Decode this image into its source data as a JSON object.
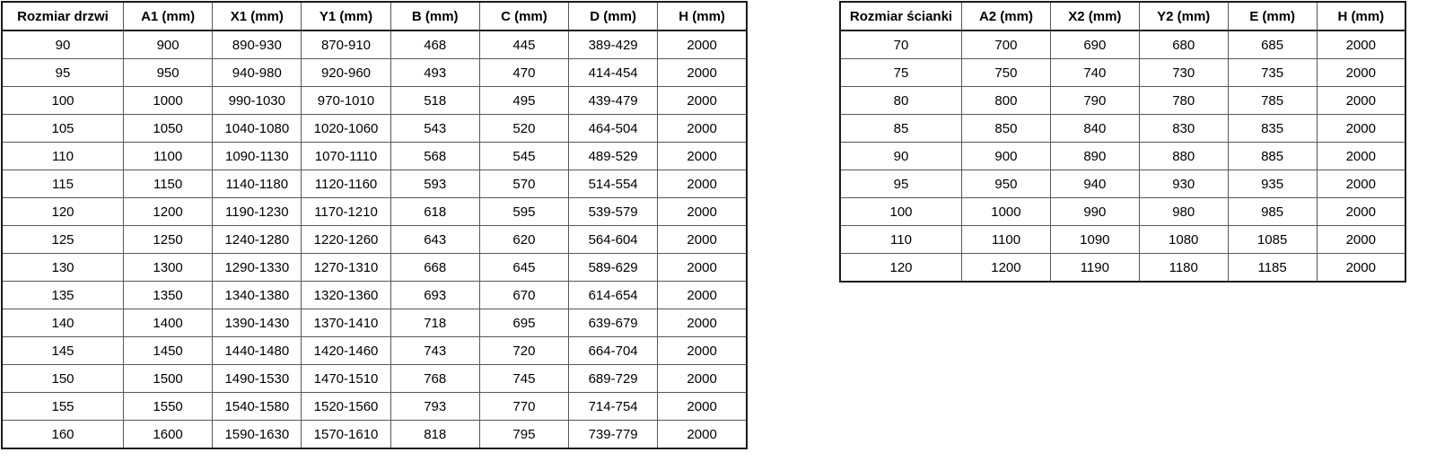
{
  "page": {
    "background_color": "#ffffff",
    "text_color": "#000000",
    "inner_border_color": "#575757",
    "outer_border_color": "#1a1a1a",
    "language": "pl"
  },
  "tables": {
    "doors": {
      "title": "Rozmiar drzwi",
      "headers": [
        "Rozmiar drzwi",
        "A1 (mm)",
        "X1 (mm)",
        "Y1 (mm)",
        "B (mm)",
        "C (mm)",
        "D (mm)",
        "H (mm)"
      ],
      "rows": [
        [
          "90",
          "900",
          "890-930",
          "870-910",
          "468",
          "445",
          "389-429",
          "2000"
        ],
        [
          "95",
          "950",
          "940-980",
          "920-960",
          "493",
          "470",
          "414-454",
          "2000"
        ],
        [
          "100",
          "1000",
          "990-1030",
          "970-1010",
          "518",
          "495",
          "439-479",
          "2000"
        ],
        [
          "105",
          "1050",
          "1040-1080",
          "1020-1060",
          "543",
          "520",
          "464-504",
          "2000"
        ],
        [
          "110",
          "1100",
          "1090-1130",
          "1070-1110",
          "568",
          "545",
          "489-529",
          "2000"
        ],
        [
          "115",
          "1150",
          "1140-1180",
          "1120-1160",
          "593",
          "570",
          "514-554",
          "2000"
        ],
        [
          "120",
          "1200",
          "1190-1230",
          "1170-1210",
          "618",
          "595",
          "539-579",
          "2000"
        ],
        [
          "125",
          "1250",
          "1240-1280",
          "1220-1260",
          "643",
          "620",
          "564-604",
          "2000"
        ],
        [
          "130",
          "1300",
          "1290-1330",
          "1270-1310",
          "668",
          "645",
          "589-629",
          "2000"
        ],
        [
          "135",
          "1350",
          "1340-1380",
          "1320-1360",
          "693",
          "670",
          "614-654",
          "2000"
        ],
        [
          "140",
          "1400",
          "1390-1430",
          "1370-1410",
          "718",
          "695",
          "639-679",
          "2000"
        ],
        [
          "145",
          "1450",
          "1440-1480",
          "1420-1460",
          "743",
          "720",
          "664-704",
          "2000"
        ],
        [
          "150",
          "1500",
          "1490-1530",
          "1470-1510",
          "768",
          "745",
          "689-729",
          "2000"
        ],
        [
          "155",
          "1550",
          "1540-1580",
          "1520-1560",
          "793",
          "770",
          "714-754",
          "2000"
        ],
        [
          "160",
          "1600",
          "1590-1630",
          "1570-1610",
          "818",
          "795",
          "739-779",
          "2000"
        ]
      ]
    },
    "walls": {
      "title": "Rozmiar ścianki",
      "headers": [
        "Rozmiar ścianki",
        "A2 (mm)",
        "X2 (mm)",
        "Y2 (mm)",
        "E (mm)",
        "H (mm)"
      ],
      "rows": [
        [
          "70",
          "700",
          "690",
          "680",
          "685",
          "2000"
        ],
        [
          "75",
          "750",
          "740",
          "730",
          "735",
          "2000"
        ],
        [
          "80",
          "800",
          "790",
          "780",
          "785",
          "2000"
        ],
        [
          "85",
          "850",
          "840",
          "830",
          "835",
          "2000"
        ],
        [
          "90",
          "900",
          "890",
          "880",
          "885",
          "2000"
        ],
        [
          "95",
          "950",
          "940",
          "930",
          "935",
          "2000"
        ],
        [
          "100",
          "1000",
          "990",
          "980",
          "985",
          "2000"
        ],
        [
          "110",
          "1100",
          "1090",
          "1080",
          "1085",
          "2000"
        ],
        [
          "120",
          "1200",
          "1190",
          "1180",
          "1185",
          "2000"
        ]
      ]
    }
  }
}
